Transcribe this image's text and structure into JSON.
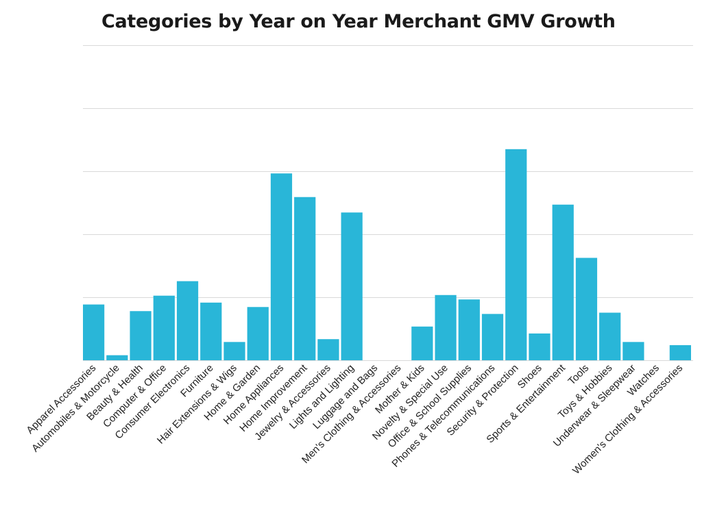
{
  "chart_data": {
    "type": "bar",
    "title": "Categories by Year on Year Merchant GMV Growth",
    "xlabel": "",
    "ylabel": "",
    "ylim": [
      0,
      10
    ],
    "grid": true,
    "y_tick_values": [
      0,
      2,
      4,
      6,
      8,
      10
    ],
    "y_tick_labels_shown": false,
    "bar_color": "#29b6d8",
    "categories": [
      "Apparel Accessories",
      "Automobiles & Motorcycle",
      "Beauty & Health",
      "Computer & Office",
      "Consumer Electronics",
      "Furniture",
      "Hair Extensions & Wigs",
      "Home & Garden",
      "Home Appliances",
      "Home Improvement",
      "Jewelry & Accessories",
      "Lights and Lighting",
      "Luggage and Bags",
      "Men's Clothing & Accessories",
      "Mother & Kids",
      "Novelty & Special Use",
      "Office & School Supplies",
      "Phones & Telecommunications",
      "Security & Protection",
      "Shoes",
      "Sports & Entertainment",
      "Tools",
      "Toys & Hobbies",
      "Underwear & Sleepwear",
      "Watches",
      "Women's Clothing & Accessories"
    ],
    "values": [
      1.77,
      0.16,
      1.56,
      2.05,
      2.51,
      1.83,
      0.58,
      1.69,
      5.93,
      5.18,
      0.67,
      4.69,
      0,
      0,
      1.07,
      2.07,
      1.93,
      1.47,
      6.7,
      0.85,
      4.94,
      3.25,
      1.51,
      0.58,
      0,
      0.48
    ]
  }
}
